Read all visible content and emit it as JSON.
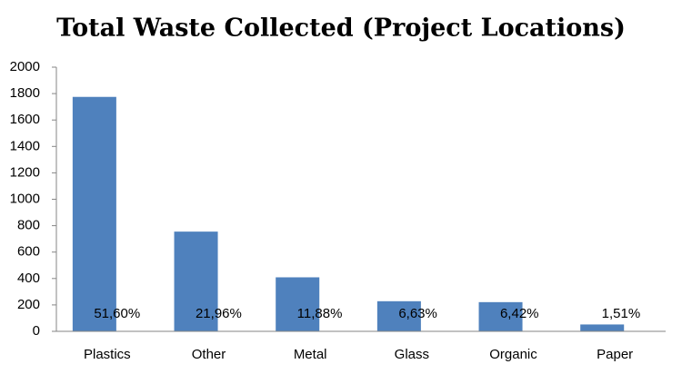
{
  "chart_data": {
    "type": "bar",
    "title": "Total Waste Collected (Project Locations)",
    "categories": [
      "Plastics",
      "Other",
      "Metal",
      "Glass",
      "Organic",
      "Paper"
    ],
    "values": [
      1775,
      755,
      409,
      228,
      221,
      52
    ],
    "percent_labels": [
      "51,60%",
      "21,96%",
      "11,88%",
      "6,63%",
      "6,42%",
      "1,51%"
    ],
    "color": "#4f81bd",
    "ylim": [
      0,
      2000
    ],
    "yticks": [
      0,
      200,
      400,
      600,
      800,
      1000,
      1200,
      1400,
      1600,
      1800,
      2000
    ],
    "grid": false
  }
}
